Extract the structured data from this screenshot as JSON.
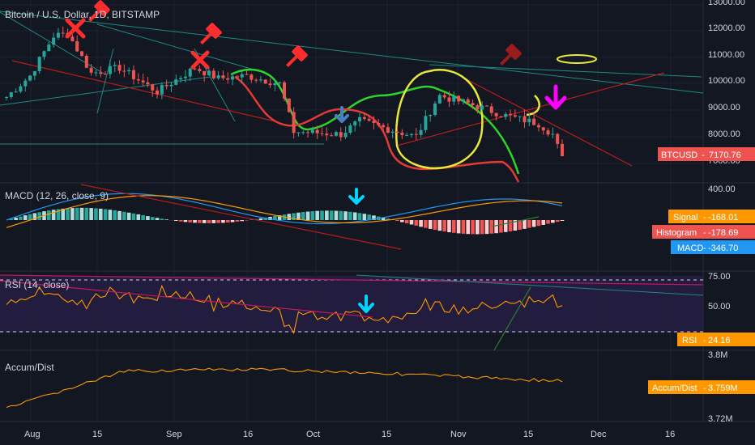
{
  "main": {
    "title": "Bitcoin / U.S. Dollar, 1D, BITSTAMP",
    "price_label": {
      "name": "BTCUSD",
      "value": "7170.76",
      "color": "#ef5350"
    },
    "y_ticks": [
      "13000.00",
      "12000.00",
      "11000.00",
      "10000.00",
      "9000.00",
      "8000.00",
      "7000.00"
    ]
  },
  "macd": {
    "title": "MACD (12, 26, close, 9)",
    "y_tick": "400.00",
    "labels": [
      {
        "name": "Signal",
        "value": "-168.01",
        "color": "#ff9800"
      },
      {
        "name": "Histogram",
        "value": "-178.69",
        "color": "#ef5350"
      },
      {
        "name": "MACD",
        "value": "-346.70",
        "color": "#2196f3"
      }
    ]
  },
  "rsi": {
    "title": "RSI (14, close)",
    "y_ticks": [
      "75.00",
      "50.00"
    ],
    "label": {
      "name": "RSI",
      "value": "24.16",
      "color": "#ff9800"
    }
  },
  "accum": {
    "title": "Accum/Dist",
    "y_ticks": [
      "3.8M",
      "3.72M"
    ],
    "label": {
      "name": "Accum/Dist",
      "value": "3.759M",
      "color": "#ff9800"
    }
  },
  "x_ticks": [
    "Aug",
    "15",
    "Sep",
    "16",
    "Oct",
    "15",
    "Nov",
    "15",
    "Dec",
    "16"
  ],
  "chart_data": {
    "type": "candlestick",
    "title": "Bitcoin / U.S. Dollar, 1D, BITSTAMP",
    "x_range": [
      "2019-07-27",
      "2019-12-27"
    ],
    "ylim": [
      6700,
      13200
    ],
    "approx_close_path": [
      [
        "2019-07-27",
        9500
      ],
      [
        "2019-08-01",
        10300
      ],
      [
        "2019-08-06",
        11800
      ],
      [
        "2019-08-09",
        11900
      ],
      [
        "2019-08-14",
        10400
      ],
      [
        "2019-08-20",
        10600
      ],
      [
        "2019-08-28",
        9700
      ],
      [
        "2019-09-05",
        10600
      ],
      [
        "2019-09-10",
        10200
      ],
      [
        "2019-09-16",
        10300
      ],
      [
        "2019-09-23",
        10000
      ],
      [
        "2019-09-26",
        8200
      ],
      [
        "2019-10-06",
        8100
      ],
      [
        "2019-10-10",
        8600
      ],
      [
        "2019-10-22",
        8000
      ],
      [
        "2019-10-26",
        9300
      ],
      [
        "2019-10-27",
        9550
      ],
      [
        "2019-11-03",
        9200
      ],
      [
        "2019-11-10",
        8800
      ],
      [
        "2019-11-17",
        8500
      ],
      [
        "2019-11-20",
        8100
      ],
      [
        "2019-11-22",
        7170
      ]
    ],
    "current_price": 7170.76,
    "macd": {
      "signal": -168.01,
      "histogram": -178.69,
      "macd": -346.7
    },
    "rsi": {
      "value": 24.16,
      "levels": [
        70,
        30
      ]
    },
    "accum_dist": {
      "value": "3.759M"
    }
  },
  "colors": {
    "up": "#26a69a",
    "down": "#ef5350",
    "background": "#131722"
  }
}
